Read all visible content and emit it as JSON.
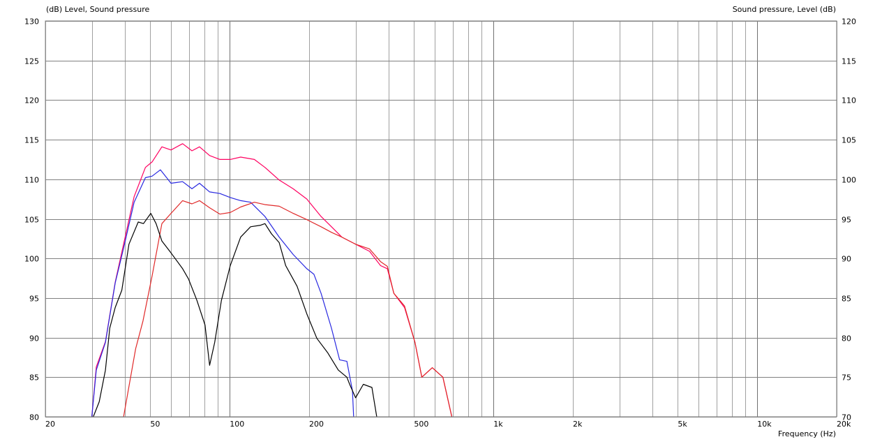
{
  "chart_data": {
    "type": "line",
    "title": "",
    "ylabel_left": "(dB)  Level, Sound pressure",
    "ylabel_right": "Sound pressure, Level  (dB)",
    "xlabel": "Frequency  (Hz)",
    "x_scale": "log",
    "xlim": [
      20,
      20000
    ],
    "ylim_left": [
      80,
      130
    ],
    "ylim_right": [
      70,
      120
    ],
    "grid": true,
    "x_tick_labels": [
      {
        "v": 20,
        "label": "20"
      },
      {
        "v": 50,
        "label": "50"
      },
      {
        "v": 100,
        "label": "100"
      },
      {
        "v": 200,
        "label": "200"
      },
      {
        "v": 500,
        "label": "500"
      },
      {
        "v": 1000,
        "label": "1k"
      },
      {
        "v": 2000,
        "label": "2k"
      },
      {
        "v": 5000,
        "label": "5k"
      },
      {
        "v": 10000,
        "label": "10k"
      },
      {
        "v": 20000,
        "label": "20k"
      }
    ],
    "y_ticks_left": [
      "80",
      "85",
      "90",
      "95",
      "100",
      "105",
      "110",
      "115",
      "120",
      "125",
      "130"
    ],
    "y_ticks_right": [
      "70",
      "75",
      "80",
      "85",
      "90",
      "95",
      "100",
      "105",
      "110",
      "115",
      "120"
    ],
    "series": [
      {
        "color": "#ff0060",
        "points": [
          [
            30,
            80
          ],
          [
            31.2,
            86.3
          ],
          [
            33.8,
            89.5
          ],
          [
            36.8,
            97
          ],
          [
            39.6,
            101.8
          ],
          [
            43.4,
            107.8
          ],
          [
            47.9,
            111.5
          ],
          [
            50.8,
            112.2
          ],
          [
            55.3,
            114.1
          ],
          [
            59.9,
            113.7
          ],
          [
            66.3,
            114.5
          ],
          [
            71.9,
            113.6
          ],
          [
            76.8,
            114.1
          ],
          [
            83.9,
            113
          ],
          [
            91.8,
            112.5
          ],
          [
            100.5,
            112.5
          ],
          [
            110,
            112.8
          ],
          [
            124,
            112.5
          ],
          [
            136,
            111.5
          ],
          [
            154,
            109.9
          ],
          [
            174,
            108.8
          ],
          [
            196,
            107.5
          ],
          [
            222,
            105.3
          ],
          [
            243,
            104
          ],
          [
            266,
            102.7
          ],
          [
            300,
            101.8
          ],
          [
            339,
            100.9
          ],
          [
            373,
            99.1
          ],
          [
            396,
            98.7
          ],
          [
            419,
            95.6
          ],
          [
            460,
            93.8
          ],
          [
            504,
            89.4
          ],
          [
            535,
            85
          ],
          [
            586,
            86.2
          ],
          [
            643,
            85
          ],
          [
            695,
            80
          ]
        ]
      },
      {
        "color": "#2828e0",
        "points": [
          [
            30,
            80
          ],
          [
            31.2,
            85.9
          ],
          [
            33.8,
            89.4
          ],
          [
            36.8,
            96.9
          ],
          [
            39.6,
            101.3
          ],
          [
            43.4,
            107.1
          ],
          [
            47.9,
            110.2
          ],
          [
            50.8,
            110.4
          ],
          [
            54.6,
            111.2
          ],
          [
            59.9,
            109.5
          ],
          [
            66.3,
            109.7
          ],
          [
            71.9,
            108.8
          ],
          [
            76.8,
            109.5
          ],
          [
            83.9,
            108.4
          ],
          [
            91.8,
            108.2
          ],
          [
            100.5,
            107.7
          ],
          [
            110,
            107.3
          ],
          [
            120,
            107.1
          ],
          [
            136,
            105.3
          ],
          [
            154,
            102.7
          ],
          [
            174,
            100.5
          ],
          [
            196,
            98.7
          ],
          [
            208.6,
            98
          ],
          [
            222,
            95.6
          ],
          [
            243,
            91.2
          ],
          [
            261,
            87.2
          ],
          [
            278,
            87
          ],
          [
            292,
            83.3
          ],
          [
            295,
            80
          ]
        ]
      },
      {
        "color": "#e02828",
        "points": [
          [
            39.6,
            80
          ],
          [
            44,
            88.6
          ],
          [
            46.9,
            92.1
          ],
          [
            50.8,
            97.8
          ],
          [
            55.3,
            104.4
          ],
          [
            59.9,
            105.7
          ],
          [
            66.3,
            107.3
          ],
          [
            71.9,
            106.9
          ],
          [
            76.8,
            107.3
          ],
          [
            83.9,
            106.4
          ],
          [
            91.8,
            105.6
          ],
          [
            100.5,
            105.8
          ],
          [
            110,
            106.5
          ],
          [
            124,
            107.1
          ],
          [
            136,
            106.8
          ],
          [
            154,
            106.6
          ],
          [
            174,
            105.7
          ],
          [
            196,
            104.9
          ],
          [
            222,
            104
          ],
          [
            243,
            103.3
          ],
          [
            266,
            102.7
          ],
          [
            300,
            101.8
          ],
          [
            339,
            101.2
          ],
          [
            373,
            99.6
          ],
          [
            396,
            99
          ],
          [
            419,
            95.6
          ],
          [
            460,
            94
          ],
          [
            504,
            89.4
          ],
          [
            535,
            85
          ],
          [
            586,
            86.2
          ],
          [
            643,
            85
          ],
          [
            695,
            80
          ]
        ]
      },
      {
        "color": "#000000",
        "points": [
          [
            30.4,
            80
          ],
          [
            32,
            81.9
          ],
          [
            33.8,
            85.9
          ],
          [
            35.1,
            91.2
          ],
          [
            36.8,
            93.8
          ],
          [
            39,
            96
          ],
          [
            41.5,
            101.8
          ],
          [
            45,
            104.6
          ],
          [
            47.1,
            104.4
          ],
          [
            50.2,
            105.7
          ],
          [
            52.6,
            104.4
          ],
          [
            55.3,
            102.2
          ],
          [
            59.9,
            100.7
          ],
          [
            66.3,
            98.7
          ],
          [
            69.8,
            97.4
          ],
          [
            75.1,
            94.7
          ],
          [
            80.6,
            91.6
          ],
          [
            83.9,
            86.5
          ],
          [
            87.7,
            89.4
          ],
          [
            93,
            94.7
          ],
          [
            100.5,
            99.1
          ],
          [
            110,
            102.7
          ],
          [
            120,
            104
          ],
          [
            131,
            104.2
          ],
          [
            136,
            104.4
          ],
          [
            144,
            103.1
          ],
          [
            154,
            102
          ],
          [
            163,
            99.1
          ],
          [
            180,
            96.5
          ],
          [
            196,
            93
          ],
          [
            214,
            89.9
          ],
          [
            235,
            88.1
          ],
          [
            258,
            85.9
          ],
          [
            278,
            85
          ],
          [
            285,
            84.1
          ],
          [
            300,
            82.4
          ],
          [
            321,
            84.1
          ],
          [
            346,
            83.7
          ],
          [
            361,
            80
          ]
        ]
      }
    ]
  }
}
